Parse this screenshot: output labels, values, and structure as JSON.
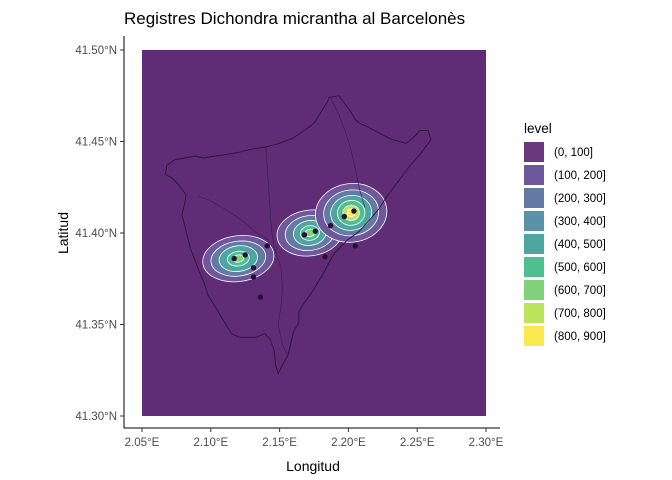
{
  "chart_data": {
    "type": "heatmap",
    "title": "Registres Dichondra micrantha al Barcelonès",
    "xlabel": "Longitud",
    "ylabel": "Latitud",
    "xlim": [
      2.05,
      2.3
    ],
    "ylim": [
      41.3,
      41.5
    ],
    "x_ticks": [
      {
        "value": 2.05,
        "label": "2.05°E"
      },
      {
        "value": 2.1,
        "label": "2.10°E"
      },
      {
        "value": 2.15,
        "label": "2.15°E"
      },
      {
        "value": 2.2,
        "label": "2.20°E"
      },
      {
        "value": 2.25,
        "label": "2.25°E"
      },
      {
        "value": 2.3,
        "label": "2.30°E"
      }
    ],
    "y_ticks": [
      {
        "value": 41.3,
        "label": "41.30°N"
      },
      {
        "value": 41.35,
        "label": "41.35°N"
      },
      {
        "value": 41.4,
        "label": "41.40°N"
      },
      {
        "value": 41.45,
        "label": "41.45°N"
      },
      {
        "value": 41.5,
        "label": "41.50°N"
      }
    ],
    "background_fill": "#5f2c75",
    "contour_color": "#ffffff",
    "legend": {
      "title": "level",
      "position": "right",
      "entries": [
        {
          "label": "(0, 100]",
          "color": "#6b3880"
        },
        {
          "label": "(100, 200]",
          "color": "#6f579b"
        },
        {
          "label": "(200, 300]",
          "color": "#637aa3"
        },
        {
          "label": "(300, 400]",
          "color": "#5a93a8"
        },
        {
          "label": "(400, 500]",
          "color": "#4ea6a1"
        },
        {
          "label": "(500, 600]",
          "color": "#4fbf91"
        },
        {
          "label": "(600, 700]",
          "color": "#7fd27a"
        },
        {
          "label": "(700, 800]",
          "color": "#bde35c"
        },
        {
          "label": "(800, 900]",
          "color": "#fbe84f"
        }
      ]
    },
    "hotspots": [
      {
        "x": 2.12,
        "y": 41.386,
        "peak_level_index": 6,
        "contour_radii": [
          [
            0.026,
            0.0125
          ],
          [
            0.02,
            0.0095
          ],
          [
            0.014,
            0.007
          ],
          [
            0.008,
            0.004
          ],
          [
            0.004,
            0.002
          ]
        ]
      },
      {
        "x": 2.172,
        "y": 41.4,
        "peak_level_index": 6,
        "contour_radii": [
          [
            0.024,
            0.0125
          ],
          [
            0.018,
            0.0095
          ],
          [
            0.012,
            0.0068
          ],
          [
            0.007,
            0.004
          ],
          [
            0.0035,
            0.002
          ]
        ]
      },
      {
        "x": 2.202,
        "y": 41.411,
        "peak_level_index": 8,
        "contour_radii": [
          [
            0.026,
            0.016
          ],
          [
            0.02,
            0.0125
          ],
          [
            0.015,
            0.0095
          ],
          [
            0.01,
            0.0068
          ],
          [
            0.006,
            0.0042
          ],
          [
            0.003,
            0.0022
          ]
        ]
      }
    ],
    "points": [
      {
        "x": 2.117,
        "y": 41.386
      },
      {
        "x": 2.125,
        "y": 41.388
      },
      {
        "x": 2.131,
        "y": 41.381
      },
      {
        "x": 2.131,
        "y": 41.376
      },
      {
        "x": 2.136,
        "y": 41.365
      },
      {
        "x": 2.141,
        "y": 41.393
      },
      {
        "x": 2.168,
        "y": 41.399
      },
      {
        "x": 2.176,
        "y": 41.401
      },
      {
        "x": 2.183,
        "y": 41.387
      },
      {
        "x": 2.187,
        "y": 41.404
      },
      {
        "x": 2.197,
        "y": 41.409
      },
      {
        "x": 2.204,
        "y": 41.412
      },
      {
        "x": 2.205,
        "y": 41.393
      }
    ],
    "boundary": [
      [
        2.125,
        41.445
      ],
      [
        2.131,
        41.446
      ],
      [
        2.14,
        41.447
      ],
      [
        2.15,
        41.449
      ],
      [
        2.16,
        41.452
      ],
      [
        2.168,
        41.456
      ],
      [
        2.175,
        41.46
      ],
      [
        2.18,
        41.466
      ],
      [
        2.185,
        41.472
      ],
      [
        2.186,
        41.474
      ],
      [
        2.193,
        41.475
      ],
      [
        2.197,
        41.471
      ],
      [
        2.201,
        41.467
      ],
      [
        2.205,
        41.462
      ],
      [
        2.208,
        41.46
      ],
      [
        2.214,
        41.458
      ],
      [
        2.224,
        41.454
      ],
      [
        2.232,
        41.451
      ],
      [
        2.242,
        41.449
      ],
      [
        2.247,
        41.452
      ],
      [
        2.252,
        41.456
      ],
      [
        2.258,
        41.456
      ],
      [
        2.26,
        41.451
      ],
      [
        2.252,
        41.443
      ],
      [
        2.244,
        41.436
      ],
      [
        2.236,
        41.428
      ],
      [
        2.228,
        41.42
      ],
      [
        2.222,
        41.413
      ],
      [
        2.214,
        41.406
      ],
      [
        2.208,
        41.401
      ],
      [
        2.199,
        41.396
      ],
      [
        2.19,
        41.389
      ],
      [
        2.186,
        41.384
      ],
      [
        2.182,
        41.378
      ],
      [
        2.177,
        41.372
      ],
      [
        2.172,
        41.366
      ],
      [
        2.168,
        41.362
      ],
      [
        2.164,
        41.357
      ],
      [
        2.164,
        41.351
      ],
      [
        2.16,
        41.346
      ],
      [
        2.158,
        41.339
      ],
      [
        2.156,
        41.333
      ],
      [
        2.152,
        41.328
      ],
      [
        2.149,
        41.323
      ],
      [
        2.147,
        41.328
      ],
      [
        2.146,
        41.336
      ],
      [
        2.143,
        41.342
      ],
      [
        2.139,
        41.345
      ],
      [
        2.133,
        41.343
      ],
      [
        2.127,
        41.343
      ],
      [
        2.121,
        41.343
      ],
      [
        2.115,
        41.345
      ],
      [
        2.111,
        41.35
      ],
      [
        2.107,
        41.355
      ],
      [
        2.103,
        41.36
      ],
      [
        2.098,
        41.366
      ],
      [
        2.095,
        41.373
      ],
      [
        2.091,
        41.38
      ],
      [
        2.088,
        41.386
      ],
      [
        2.085,
        41.392
      ],
      [
        2.083,
        41.398
      ],
      [
        2.081,
        41.404
      ],
      [
        2.079,
        41.41
      ],
      [
        2.081,
        41.416
      ],
      [
        2.082,
        41.421
      ],
      [
        2.077,
        41.426
      ],
      [
        2.072,
        41.43
      ],
      [
        2.067,
        41.432
      ],
      [
        2.068,
        41.437
      ],
      [
        2.074,
        41.44
      ],
      [
        2.081,
        41.441
      ],
      [
        2.088,
        41.442
      ],
      [
        2.095,
        41.441
      ],
      [
        2.103,
        41.442
      ],
      [
        2.112,
        41.443
      ],
      [
        2.12,
        41.444
      ],
      [
        2.125,
        41.445
      ]
    ],
    "inner_lines": [
      [
        [
          2.14,
          41.447
        ],
        [
          2.141,
          41.436
        ],
        [
          2.142,
          41.425
        ],
        [
          2.143,
          41.414
        ],
        [
          2.144,
          41.403
        ],
        [
          2.146,
          41.392
        ]
      ],
      [
        [
          2.187,
          41.474
        ],
        [
          2.193,
          41.465
        ],
        [
          2.198,
          41.455
        ],
        [
          2.202,
          41.445
        ],
        [
          2.205,
          41.435
        ],
        [
          2.208,
          41.424
        ],
        [
          2.212,
          41.414
        ]
      ],
      [
        [
          2.146,
          41.392
        ],
        [
          2.151,
          41.381
        ],
        [
          2.152,
          41.37
        ],
        [
          2.151,
          41.36
        ],
        [
          2.149,
          41.35
        ],
        [
          2.152,
          41.339
        ],
        [
          2.156,
          41.333
        ]
      ],
      [
        [
          2.091,
          41.42
        ],
        [
          2.099,
          41.418
        ],
        [
          2.106,
          41.415
        ],
        [
          2.115,
          41.411
        ],
        [
          2.124,
          41.406
        ],
        [
          2.132,
          41.401
        ],
        [
          2.142,
          41.396
        ]
      ]
    ]
  }
}
